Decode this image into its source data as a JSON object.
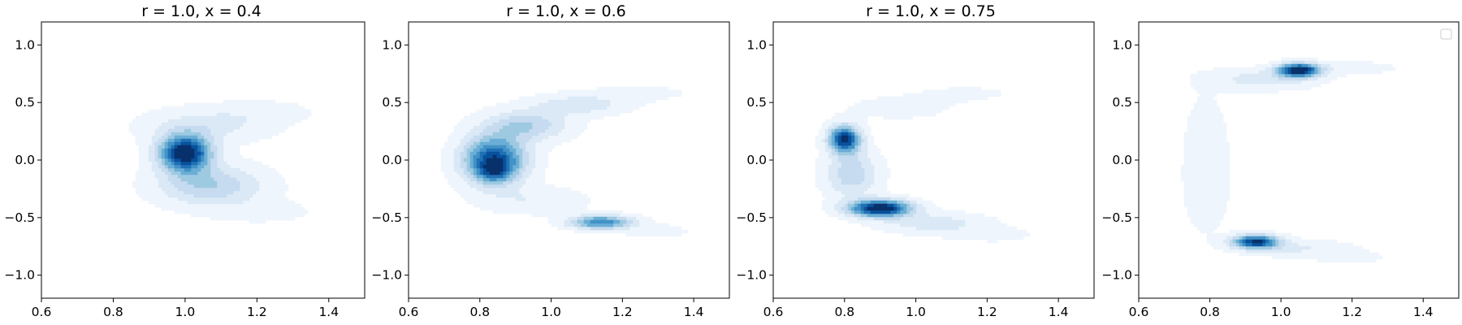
{
  "chart_data": [
    {
      "type": "contour",
      "title": "r = 1.0, x = 0.4",
      "xlim": [
        0.6,
        1.5
      ],
      "ylim": [
        -1.2,
        1.2
      ],
      "xticks": [
        "0.6",
        "0.8",
        "1.0",
        "1.2",
        "1.4"
      ],
      "yticks": [
        "1.0",
        "0.5",
        "0.0",
        "−0.5",
        "−1.0"
      ],
      "legend": "none",
      "density_components": [
        {
          "cx": 1.0,
          "cy": 0.06,
          "sx": 0.05,
          "sy": 0.11,
          "w": 1.0
        },
        {
          "cx": 1.06,
          "cy": 0.3,
          "sx": 0.12,
          "sy": 0.1,
          "w": 0.18
        },
        {
          "cx": 1.22,
          "cy": 0.42,
          "sx": 0.1,
          "sy": 0.07,
          "w": 0.07
        },
        {
          "cx": 1.07,
          "cy": -0.22,
          "sx": 0.1,
          "sy": 0.12,
          "w": 0.35
        },
        {
          "cx": 1.22,
          "cy": -0.45,
          "sx": 0.1,
          "sy": 0.07,
          "w": 0.07
        }
      ]
    },
    {
      "type": "contour",
      "title": "r = 1.0, x = 0.6",
      "xlim": [
        0.6,
        1.5
      ],
      "ylim": [
        -1.2,
        1.2
      ],
      "xticks": [
        "0.6",
        "0.8",
        "1.0",
        "1.2",
        "1.4"
      ],
      "yticks": [
        "1.0",
        "0.5",
        "0.0",
        "−0.5",
        "−1.0"
      ],
      "legend": "none",
      "density_components": [
        {
          "cx": 0.84,
          "cy": 0.0,
          "sx": 0.06,
          "sy": 0.14,
          "w": 1.0
        },
        {
          "cx": 0.84,
          "cy": -0.1,
          "sx": 0.03,
          "sy": 0.06,
          "w": 0.35
        },
        {
          "cx": 0.93,
          "cy": 0.3,
          "sx": 0.08,
          "sy": 0.09,
          "w": 0.4
        },
        {
          "cx": 1.08,
          "cy": 0.48,
          "sx": 0.09,
          "sy": 0.06,
          "w": 0.25
        },
        {
          "cx": 1.25,
          "cy": 0.58,
          "sx": 0.1,
          "sy": 0.05,
          "w": 0.08
        },
        {
          "cx": 0.95,
          "cy": -0.35,
          "sx": 0.1,
          "sy": 0.08,
          "w": 0.15
        },
        {
          "cx": 1.14,
          "cy": -0.54,
          "sx": 0.06,
          "sy": 0.04,
          "w": 0.75
        },
        {
          "cx": 1.3,
          "cy": -0.62,
          "sx": 0.08,
          "sy": 0.05,
          "w": 0.07
        }
      ]
    },
    {
      "type": "contour",
      "title": "r = 1.0, x = 0.75",
      "xlim": [
        0.6,
        1.5
      ],
      "ylim": [
        -1.2,
        1.2
      ],
      "xticks": [
        "0.6",
        "0.8",
        "1.0",
        "1.2",
        "1.4"
      ],
      "yticks": [
        "1.0",
        "0.5",
        "0.0",
        "−0.5",
        "−1.0"
      ],
      "legend": "none",
      "density_components": [
        {
          "cx": 0.8,
          "cy": 0.18,
          "sx": 0.03,
          "sy": 0.08,
          "w": 1.0
        },
        {
          "cx": 0.82,
          "cy": -0.12,
          "sx": 0.05,
          "sy": 0.14,
          "w": 0.35
        },
        {
          "cx": 0.9,
          "cy": -0.42,
          "sx": 0.06,
          "sy": 0.05,
          "w": 1.1
        },
        {
          "cx": 1.05,
          "cy": -0.55,
          "sx": 0.1,
          "sy": 0.06,
          "w": 0.22
        },
        {
          "cx": 1.22,
          "cy": -0.65,
          "sx": 0.09,
          "sy": 0.05,
          "w": 0.07
        },
        {
          "cx": 0.95,
          "cy": 0.45,
          "sx": 0.12,
          "sy": 0.08,
          "w": 0.07
        },
        {
          "cx": 1.15,
          "cy": 0.58,
          "sx": 0.12,
          "sy": 0.06,
          "w": 0.05
        }
      ]
    },
    {
      "type": "contour",
      "title": "",
      "xlim": [
        0.6,
        1.5
      ],
      "ylim": [
        -1.2,
        1.2
      ],
      "xticks": [
        "0.6",
        "0.8",
        "1.0",
        "1.2",
        "1.4"
      ],
      "yticks": [
        "1.0",
        "0.5",
        "0.0",
        "−0.5",
        "−1.0"
      ],
      "legend": "top-right (empty)",
      "density_components": [
        {
          "cx": 1.05,
          "cy": 0.78,
          "sx": 0.04,
          "sy": 0.04,
          "w": 1.0
        },
        {
          "cx": 0.95,
          "cy": 0.7,
          "sx": 0.1,
          "sy": 0.06,
          "w": 0.2
        },
        {
          "cx": 1.18,
          "cy": 0.8,
          "sx": 0.1,
          "sy": 0.04,
          "w": 0.1
        },
        {
          "cx": 0.93,
          "cy": -0.71,
          "sx": 0.045,
          "sy": 0.04,
          "w": 0.9
        },
        {
          "cx": 1.05,
          "cy": -0.77,
          "sx": 0.1,
          "sy": 0.05,
          "w": 0.15
        },
        {
          "cx": 1.2,
          "cy": -0.85,
          "sx": 0.08,
          "sy": 0.04,
          "w": 0.06
        },
        {
          "cx": 0.79,
          "cy": 0.2,
          "sx": 0.05,
          "sy": 0.35,
          "w": 0.06
        },
        {
          "cx": 0.79,
          "cy": -0.3,
          "sx": 0.05,
          "sy": 0.3,
          "w": 0.06
        }
      ]
    }
  ],
  "contour_colors": [
    "#ffffff",
    "#eff5fc",
    "#dbe9f6",
    "#c6dbef",
    "#9ecae1",
    "#6baed6",
    "#4292c6",
    "#2171b5",
    "#08519c",
    "#08306b"
  ],
  "axis_color": "#000000"
}
